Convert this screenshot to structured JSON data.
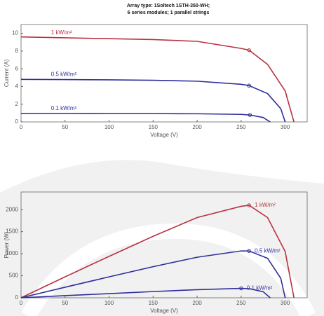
{
  "title": [
    "Array type: 1Soltech 1STH-350-WH;",
    "6 series modules; 1 parallel strings"
  ],
  "chart_data": [
    {
      "type": "line",
      "ylabel": "Current (A)",
      "xlabel": "Voltage (V)",
      "xlim": [
        0,
        325
      ],
      "xticks": [
        0,
        50,
        100,
        150,
        200,
        250,
        300
      ],
      "ylim": [
        0,
        11
      ],
      "yticks": [
        0,
        2,
        4,
        6,
        8,
        10
      ],
      "series": [
        {
          "name": "1 kW/m²",
          "color": "#b8323f",
          "x": [
            0,
            50,
            100,
            150,
            200,
            250,
            259,
            280,
            300,
            310
          ],
          "values": [
            9.6,
            9.5,
            9.4,
            9.3,
            9.1,
            8.3,
            8.1,
            6.5,
            3.5,
            0
          ],
          "mpp": [
            259,
            8.1
          ]
        },
        {
          "name": "0.5 kW/m²",
          "color": "#2e2e9c",
          "x": [
            0,
            50,
            100,
            150,
            200,
            250,
            259,
            280,
            295,
            300
          ],
          "values": [
            4.8,
            4.78,
            4.75,
            4.7,
            4.6,
            4.25,
            4.1,
            3.2,
            1.5,
            0
          ],
          "mpp": [
            259,
            4.1
          ]
        },
        {
          "name": "0.1 kW/m²",
          "color": "#2e2e9c",
          "x": [
            0,
            50,
            100,
            150,
            200,
            250,
            260,
            275,
            283
          ],
          "values": [
            0.96,
            0.96,
            0.95,
            0.94,
            0.92,
            0.85,
            0.78,
            0.5,
            0
          ],
          "mpp": [
            260,
            0.78
          ]
        }
      ]
    },
    {
      "type": "line",
      "ylabel": "Power (W)",
      "xlabel": "Voltage (V)",
      "xlim": [
        0,
        325
      ],
      "xticks": [
        0,
        50,
        100,
        150,
        200,
        250,
        300
      ],
      "ylim": [
        0,
        2400
      ],
      "yticks": [
        0,
        500,
        1000,
        1500,
        2000
      ],
      "series": [
        {
          "name": "1 kW/m²",
          "color": "#b8323f",
          "x": [
            0,
            50,
            100,
            150,
            200,
            250,
            259,
            280,
            300,
            310
          ],
          "values": [
            0,
            475,
            940,
            1395,
            1820,
            2075,
            2098,
            1820,
            1050,
            0
          ],
          "mpp": [
            259,
            2098
          ]
        },
        {
          "name": "0.5 kW/m²",
          "color": "#2e2e9c",
          "x": [
            0,
            50,
            100,
            150,
            200,
            250,
            259,
            280,
            295,
            300
          ],
          "values": [
            0,
            239,
            475,
            705,
            920,
            1063,
            1062,
            896,
            443,
            0
          ],
          "mpp": [
            259,
            1062
          ]
        },
        {
          "name": "0.1 kW/m²",
          "color": "#2e2e9c",
          "x": [
            0,
            50,
            100,
            150,
            200,
            250,
            260,
            275,
            283
          ],
          "values": [
            0,
            48,
            95,
            141,
            184,
            213,
            203,
            138,
            0
          ],
          "mpp": [
            250,
            213
          ]
        }
      ]
    }
  ]
}
